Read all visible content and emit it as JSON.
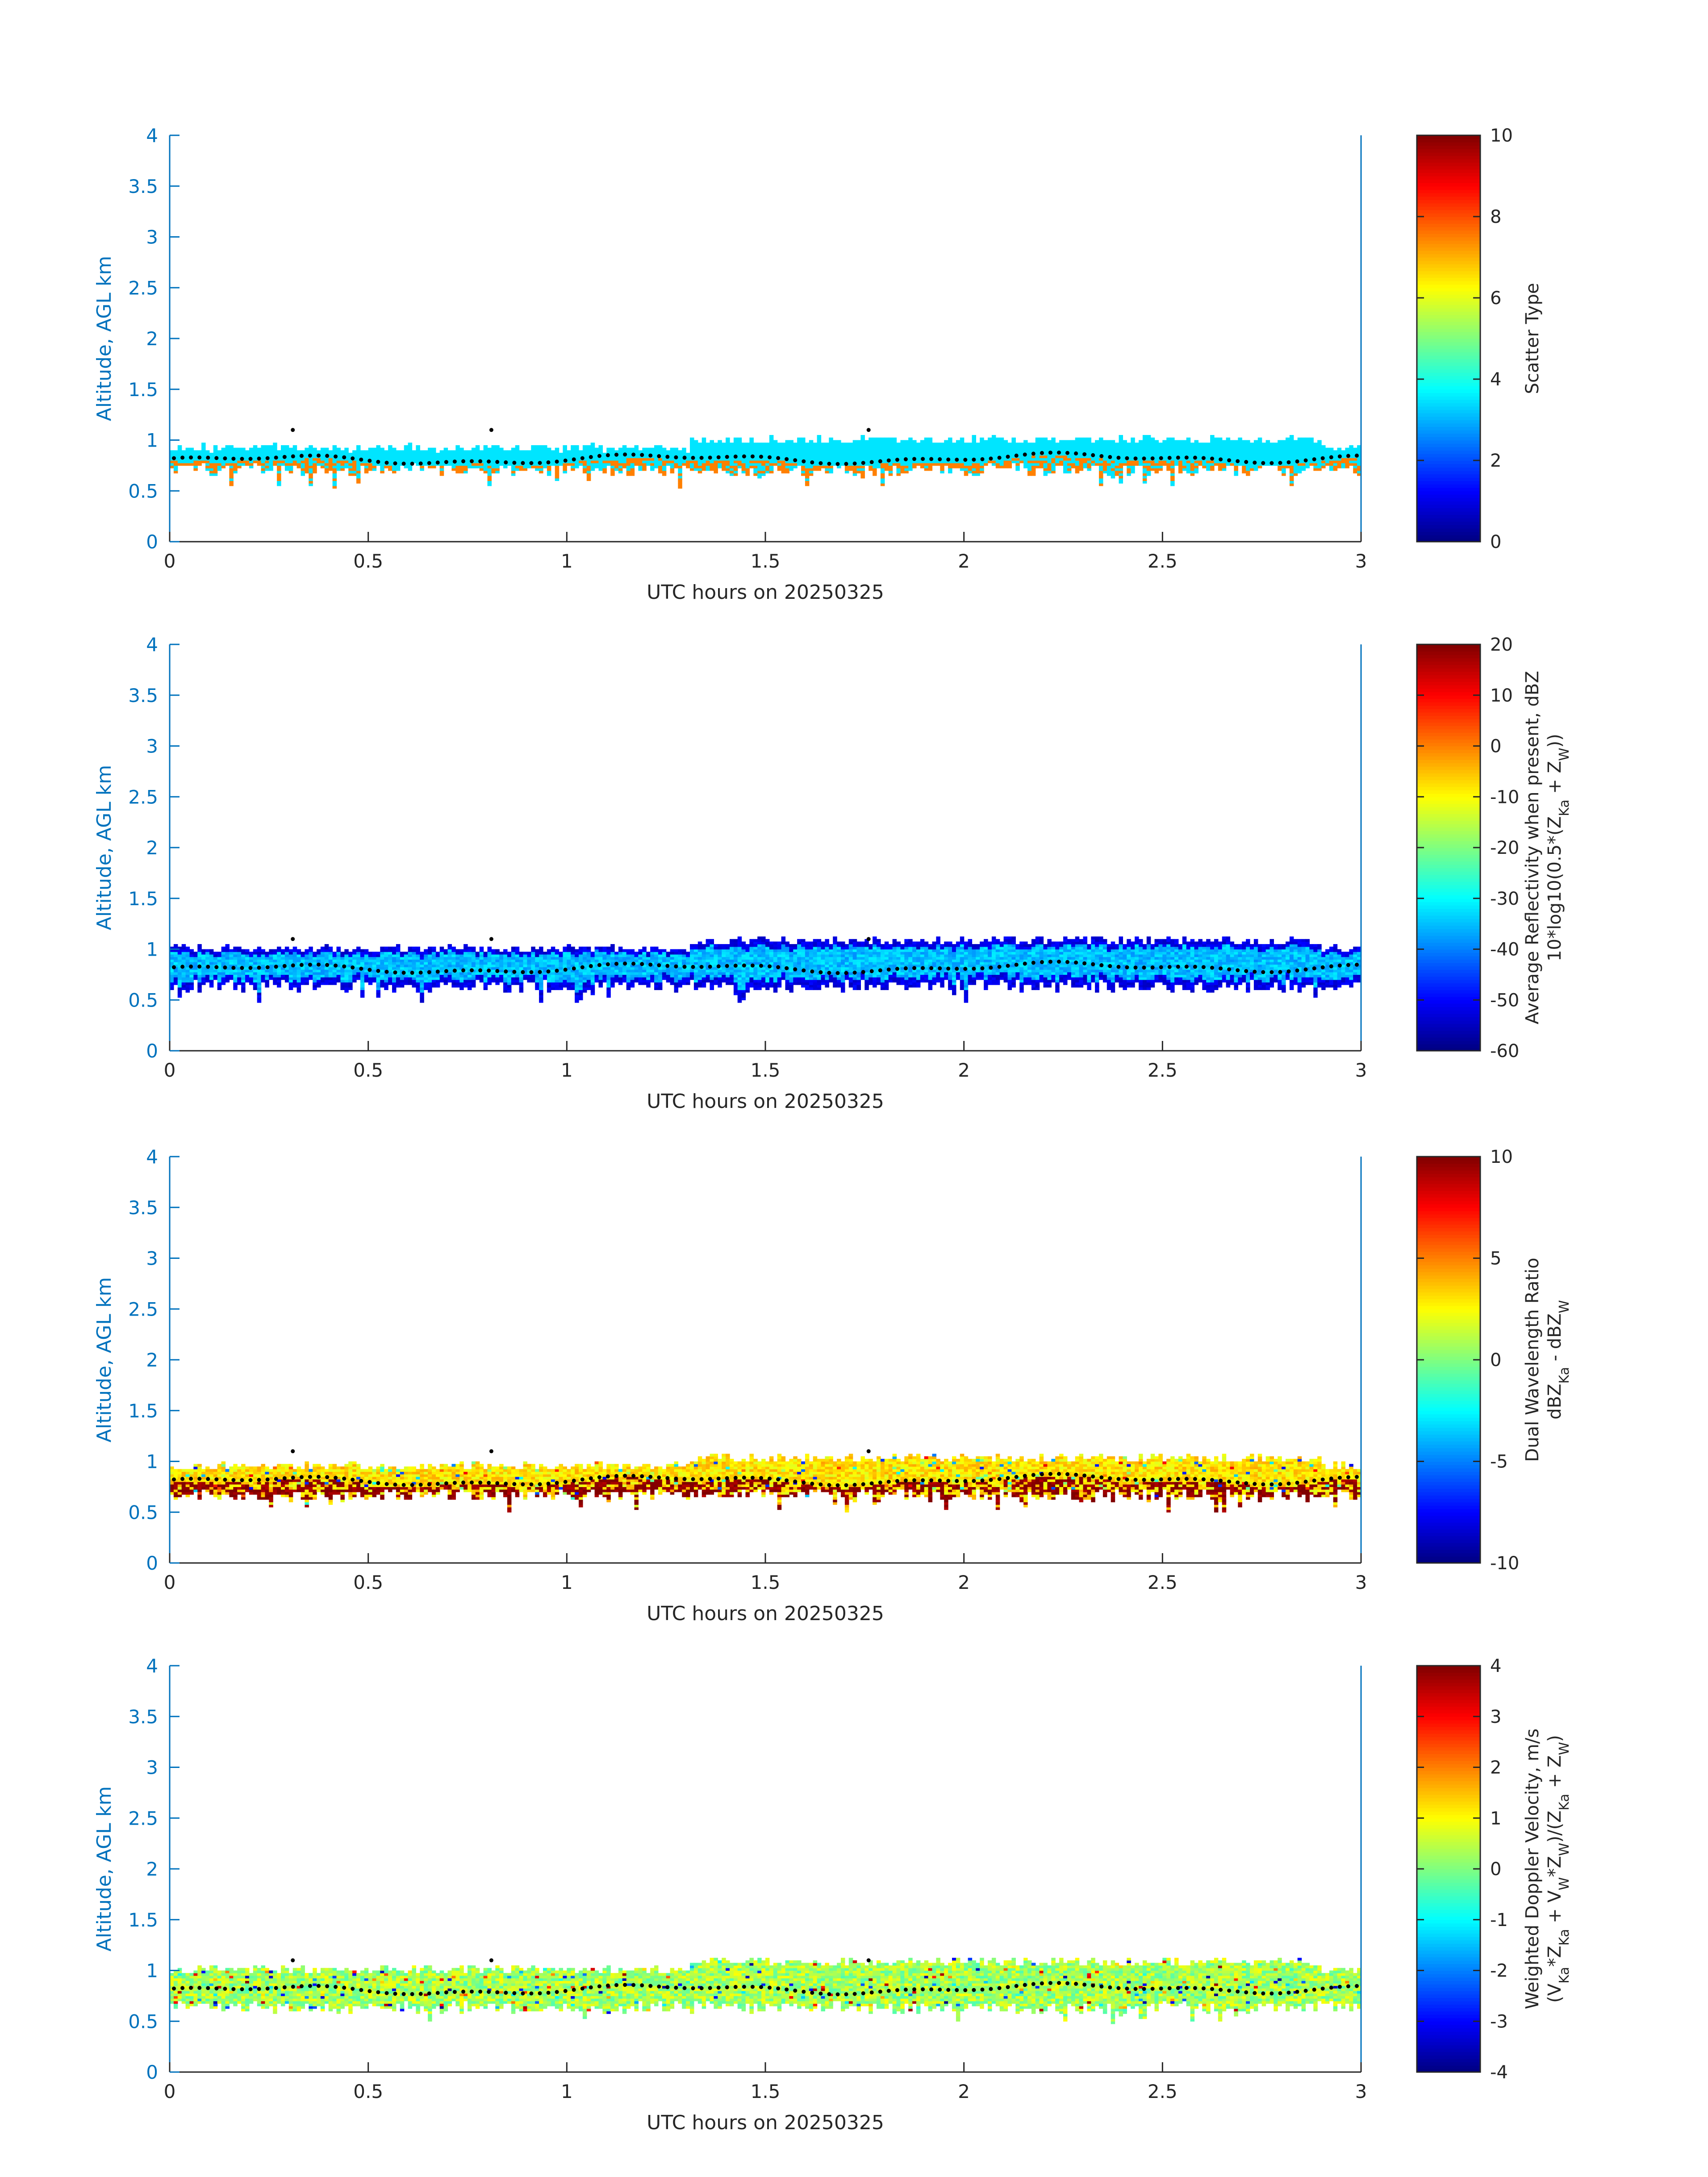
{
  "figure": {
    "date": "20250325"
  },
  "chart_data": [
    {
      "type": "heatmap",
      "title": "",
      "xlabel": "UTC hours on 20250325",
      "ylabel": "Altitude, AGL km",
      "xlim": [
        0,
        3
      ],
      "ylim": [
        0,
        4
      ],
      "x_ticks": [
        "0",
        "0.5",
        "1",
        "1.5",
        "2",
        "2.5",
        "3"
      ],
      "y_ticks": [
        "0",
        "0.5",
        "1",
        "1.5",
        "2",
        "2.5",
        "3",
        "3.5",
        "4"
      ],
      "colorbar": {
        "label_lines": [
          "Scatter Type"
        ],
        "range": [
          0,
          10
        ],
        "ticks": [
          "0",
          "2",
          "4",
          "6",
          "8",
          "10"
        ],
        "colormap": "jet"
      },
      "layer": {
        "base_km": 0.72,
        "top_km": 0.92
      },
      "value_model": "scatter",
      "dominant_value": 3.5,
      "secondary_value": 7.5,
      "cloud_base_marker": "black dotted line near 0.75-0.9 km"
    },
    {
      "type": "heatmap",
      "title": "",
      "xlabel": "UTC hours on 20250325",
      "ylabel": "Altitude, AGL km",
      "xlim": [
        0,
        3
      ],
      "ylim": [
        0,
        4
      ],
      "x_ticks": [
        "0",
        "0.5",
        "1",
        "1.5",
        "2",
        "2.5",
        "3"
      ],
      "y_ticks": [
        "0",
        "0.5",
        "1",
        "1.5",
        "2",
        "2.5",
        "3",
        "3.5",
        "4"
      ],
      "colorbar": {
        "label_lines": [
          "Average Reflectivity when present, dBZ",
          "10*log10(0.5*(Z_Ka + Z_W))"
        ],
        "range": [
          -60,
          20
        ],
        "ticks": [
          "-60",
          "-50",
          "-40",
          "-30",
          "-20",
          "-10",
          "0",
          "10",
          "20"
        ],
        "colormap": "jet"
      },
      "layer": {
        "base_km": 0.65,
        "top_km": 1.0
      },
      "value_model": "reflectivity",
      "core_value_dbz": -35,
      "edge_value_dbz": -55,
      "cloud_base_marker": "black dotted line near 0.75-0.9 km"
    },
    {
      "type": "heatmap",
      "title": "",
      "xlabel": "UTC hours on 20250325",
      "ylabel": "Altitude, AGL km",
      "xlim": [
        0,
        3
      ],
      "ylim": [
        0,
        4
      ],
      "x_ticks": [
        "0",
        "0.5",
        "1",
        "1.5",
        "2",
        "2.5",
        "3"
      ],
      "y_ticks": [
        "0",
        "0.5",
        "1",
        "1.5",
        "2",
        "2.5",
        "3",
        "3.5",
        "4"
      ],
      "colorbar": {
        "label_lines": [
          "Dual Wavelength Ratio",
          "dBZ_Ka - dBZ_W"
        ],
        "range": [
          -10,
          10
        ],
        "ticks": [
          "-10",
          "-5",
          "0",
          "5",
          "10"
        ],
        "colormap": "jet"
      },
      "layer": {
        "base_km": 0.68,
        "top_km": 0.95
      },
      "value_model": "dwr",
      "dominant_value_db": 3,
      "base_value_db": 9,
      "cloud_base_marker": "black dotted line near 0.75-0.9 km"
    },
    {
      "type": "heatmap",
      "title": "",
      "xlabel": "UTC hours on 20250325",
      "ylabel": "Altitude, AGL km",
      "xlim": [
        0,
        3
      ],
      "ylim": [
        0,
        4
      ],
      "x_ticks": [
        "0",
        "0.5",
        "1",
        "1.5",
        "2",
        "2.5",
        "3"
      ],
      "y_ticks": [
        "0",
        "0.5",
        "1",
        "1.5",
        "2",
        "2.5",
        "3",
        "3.5",
        "4"
      ],
      "colorbar": {
        "label_lines": [
          "Weighted Doppler Velocity, m/s",
          "(V_Ka*Z_Ka + V_W*Z_W)/(Z_Ka + Z_W)"
        ],
        "range": [
          -4,
          4
        ],
        "ticks": [
          "-4",
          "-3",
          "-2",
          "-1",
          "0",
          "1",
          "2",
          "3",
          "4"
        ],
        "colormap": "jet"
      },
      "layer": {
        "base_km": 0.65,
        "top_km": 1.0
      },
      "value_model": "velocity",
      "dominant_value_ms": 0.3,
      "cloud_base_marker": "black dotted line near 0.75-0.9 km"
    }
  ]
}
